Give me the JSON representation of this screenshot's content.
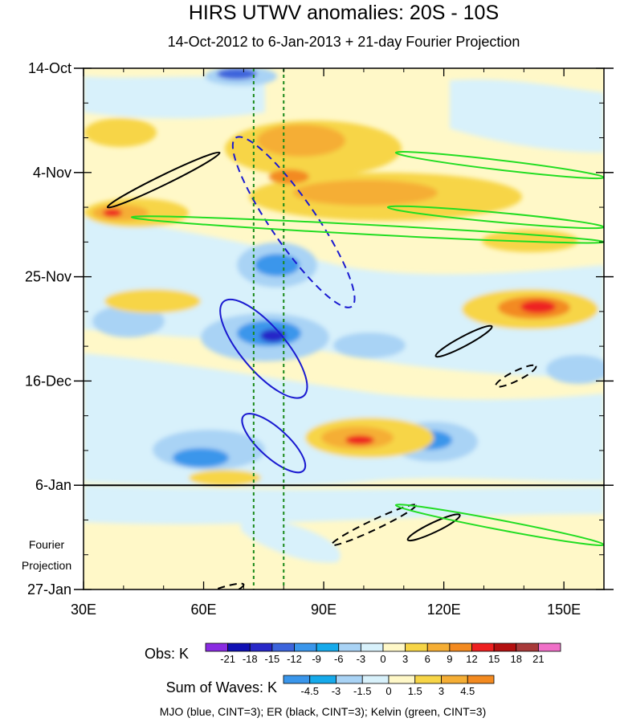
{
  "chart_data": {
    "type": "heatmap",
    "title": "HIRS UTWV anomalies: 20S - 10S",
    "subtitle": "14-Oct-2012 to 6-Jan-2013 + 21-day Fourier Projection",
    "xlabel": "",
    "ylabel": "",
    "x_ticks": [
      "30E",
      "60E",
      "90E",
      "120E",
      "150E"
    ],
    "x_tick_values": [
      30,
      60,
      90,
      120,
      150
    ],
    "x_range": [
      30,
      160
    ],
    "y_ticks": [
      "14-Oct",
      "4-Nov",
      "25-Nov",
      "16-Dec",
      "6-Jan",
      "27-Jan"
    ],
    "y_tick_days": [
      0,
      21,
      42,
      63,
      84,
      105
    ],
    "y_range_days": [
      0,
      105
    ],
    "projection_label": [
      "Fourier",
      "Projection"
    ],
    "projection_start_day": 84,
    "reference_lines_lon": [
      72.5,
      80
    ],
    "obs_legend": {
      "label": "Obs: K",
      "ticks": [
        "-21",
        "-18",
        "-15",
        "-12",
        "-9",
        "-6",
        "-3",
        "0",
        "3",
        "6",
        "9",
        "12",
        "15",
        "18",
        "21"
      ],
      "colors": [
        "#8a2be2",
        "#1010b4",
        "#2828c8",
        "#3c64dc",
        "#3a96eb",
        "#16aaeb",
        "#a9d3f5",
        "#d8f1fb",
        "#fff8c8",
        "#f7d547",
        "#f5ae35",
        "#f38a20",
        "#ee2020",
        "#b41010",
        "#a83a3a",
        "#f070c8"
      ]
    },
    "waves_legend": {
      "label": "Sum of Waves: K",
      "ticks": [
        "-4.5",
        "-3",
        "-1.5",
        "0",
        "1.5",
        "3",
        "4.5"
      ],
      "colors": [
        "#3a96eb",
        "#16aaeb",
        "#a9d3f5",
        "#d8f1fb",
        "#fff8c8",
        "#f7d547",
        "#f5ae35",
        "#f38a20"
      ]
    },
    "footnote": "MJO (blue, CINT=3); ER (black, CINT=3); Kelvin (green, CINT=3)",
    "contours": {
      "mjo_positive": [
        [
          [
            65,
            47
          ],
          [
            85,
            66
          ]
        ],
        [
          [
            70,
            70
          ],
          [
            85,
            81
          ]
        ]
      ],
      "mjo_negative": [
        [
          [
            68,
            14
          ],
          [
            97,
            48
          ]
        ]
      ],
      "er_positive": [
        [
          [
            36,
            28
          ],
          [
            64,
            17
          ]
        ],
        [
          [
            118,
            58
          ],
          [
            132,
            52
          ]
        ],
        [
          [
            111,
            95
          ],
          [
            124,
            90
          ]
        ]
      ],
      "er_negative": [
        [
          [
            92,
            96
          ],
          [
            113,
            88
          ]
        ],
        [
          [
            133,
            64
          ],
          [
            143,
            60
          ]
        ],
        [
          [
            56,
            108
          ],
          [
            70,
            104
          ]
        ]
      ],
      "kelvin": [
        [
          [
            42,
            30
          ],
          [
            160,
            35
          ]
        ],
        [
          [
            108,
            17
          ],
          [
            160,
            22
          ]
        ],
        [
          [
            106,
            28
          ],
          [
            160,
            32
          ]
        ],
        [
          [
            108,
            88
          ],
          [
            160,
            96
          ]
        ]
      ]
    }
  }
}
